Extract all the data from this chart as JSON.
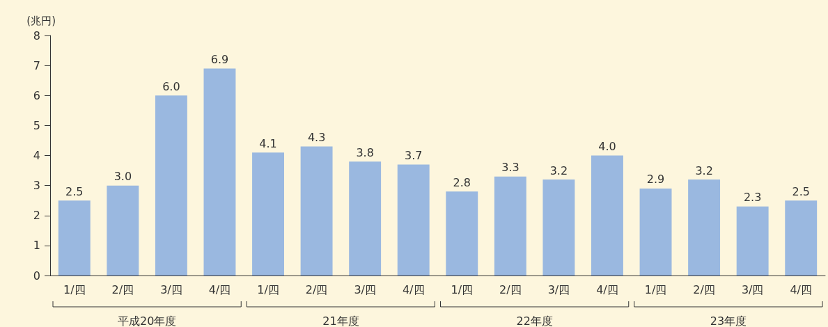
{
  "chart_data": {
    "type": "bar",
    "ylabel": "(兆円)",
    "categories": [
      "1/四",
      "2/四",
      "3/四",
      "4/四",
      "1/四",
      "2/四",
      "3/四",
      "4/四",
      "1/四",
      "2/四",
      "3/四",
      "4/四",
      "1/四",
      "2/四",
      "3/四",
      "4/四"
    ],
    "values": [
      2.5,
      3.0,
      6.0,
      6.9,
      4.1,
      4.3,
      3.8,
      3.7,
      2.8,
      3.3,
      3.2,
      4.0,
      2.9,
      3.2,
      2.3,
      2.5
    ],
    "value_labels": [
      "2.5",
      "3.0",
      "6.0",
      "6.9",
      "4.1",
      "4.3",
      "3.8",
      "3.7",
      "2.8",
      "3.3",
      "3.2",
      "4.0",
      "2.9",
      "3.2",
      "2.3",
      "2.5"
    ],
    "color": "#9ab8e0",
    "annotations": [
      "平成20年度",
      "21年度",
      "22年度",
      "23年度"
    ],
    "ylim": [
      0,
      8
    ],
    "yticks": [
      0,
      1,
      2,
      3,
      4,
      5,
      6,
      7,
      8
    ],
    "grid": false
  }
}
